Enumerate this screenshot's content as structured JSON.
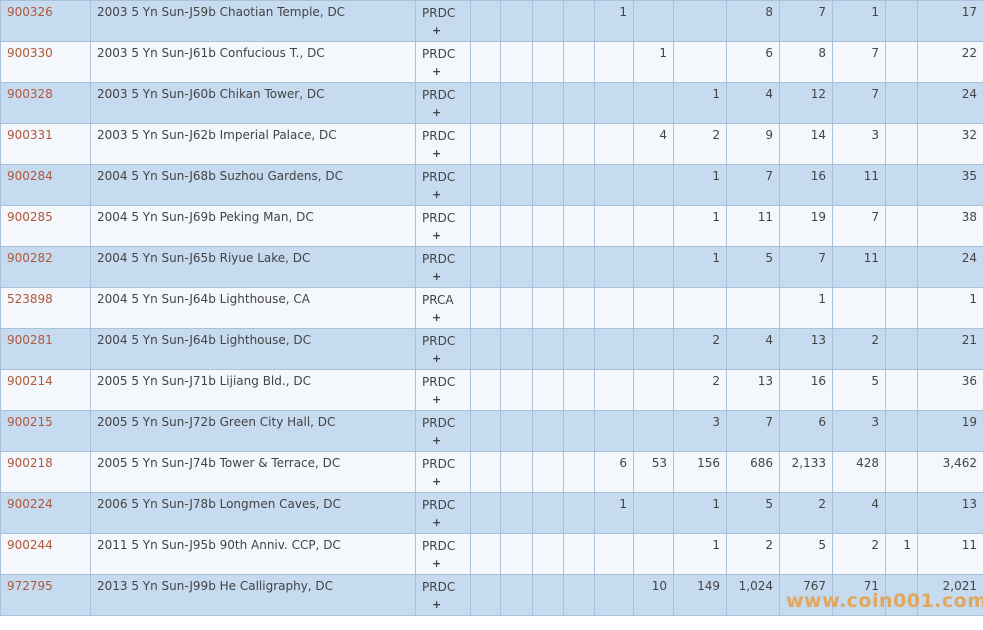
{
  "table": {
    "expand_label": "+",
    "rows": [
      {
        "id": "900326",
        "name": "2003 5 Yn Sun-J59b Chaotian Temple, DC",
        "grade": "PRDC",
        "counts": [
          null,
          null,
          null,
          null,
          "1",
          null,
          null,
          "8",
          "7",
          "1",
          null,
          "17"
        ]
      },
      {
        "id": "900330",
        "name": "2003 5 Yn Sun-J61b Confucious T., DC",
        "grade": "PRDC",
        "counts": [
          null,
          null,
          null,
          null,
          null,
          "1",
          null,
          "6",
          "8",
          "7",
          null,
          "22"
        ]
      },
      {
        "id": "900328",
        "name": "2003 5 Yn Sun-J60b Chikan Tower, DC",
        "grade": "PRDC",
        "counts": [
          null,
          null,
          null,
          null,
          null,
          null,
          "1",
          "4",
          "12",
          "7",
          null,
          "24"
        ]
      },
      {
        "id": "900331",
        "name": "2003 5 Yn Sun-J62b Imperial Palace, DC",
        "grade": "PRDC",
        "counts": [
          null,
          null,
          null,
          null,
          null,
          "4",
          "2",
          "9",
          "14",
          "3",
          null,
          "32"
        ]
      },
      {
        "id": "900284",
        "name": "2004 5 Yn Sun-J68b Suzhou Gardens, DC",
        "grade": "PRDC",
        "counts": [
          null,
          null,
          null,
          null,
          null,
          null,
          "1",
          "7",
          "16",
          "11",
          null,
          "35"
        ]
      },
      {
        "id": "900285",
        "name": "2004 5 Yn Sun-J69b Peking Man, DC",
        "grade": "PRDC",
        "counts": [
          null,
          null,
          null,
          null,
          null,
          null,
          "1",
          "11",
          "19",
          "7",
          null,
          "38"
        ]
      },
      {
        "id": "900282",
        "name": "2004 5 Yn Sun-J65b Riyue Lake, DC",
        "grade": "PRDC",
        "counts": [
          null,
          null,
          null,
          null,
          null,
          null,
          "1",
          "5",
          "7",
          "11",
          null,
          "24"
        ]
      },
      {
        "id": "523898",
        "name": "2004 5 Yn Sun-J64b Lighthouse, CA",
        "grade": "PRCA",
        "counts": [
          null,
          null,
          null,
          null,
          null,
          null,
          null,
          null,
          "1",
          null,
          null,
          "1"
        ]
      },
      {
        "id": "900281",
        "name": "2004 5 Yn Sun-J64b Lighthouse, DC",
        "grade": "PRDC",
        "counts": [
          null,
          null,
          null,
          null,
          null,
          null,
          "2",
          "4",
          "13",
          "2",
          null,
          "21"
        ]
      },
      {
        "id": "900214",
        "name": "2005 5 Yn Sun-J71b Lijiang Bld., DC",
        "grade": "PRDC",
        "counts": [
          null,
          null,
          null,
          null,
          null,
          null,
          "2",
          "13",
          "16",
          "5",
          null,
          "36"
        ]
      },
      {
        "id": "900215",
        "name": "2005 5 Yn Sun-J72b Green City Hall, DC",
        "grade": "PRDC",
        "counts": [
          null,
          null,
          null,
          null,
          null,
          null,
          "3",
          "7",
          "6",
          "3",
          null,
          "19"
        ]
      },
      {
        "id": "900218",
        "name": "2005 5 Yn Sun-J74b Tower & Terrace, DC",
        "grade": "PRDC",
        "counts": [
          null,
          null,
          null,
          null,
          "6",
          "53",
          "156",
          "686",
          "2,133",
          "428",
          null,
          "3,462"
        ]
      },
      {
        "id": "900224",
        "name": "2006 5 Yn Sun-J78b Longmen Caves, DC",
        "grade": "PRDC",
        "counts": [
          null,
          null,
          null,
          null,
          "1",
          null,
          "1",
          "5",
          "2",
          "4",
          null,
          "13"
        ]
      },
      {
        "id": "900244",
        "name": "2011 5 Yn Sun-J95b 90th Anniv. CCP, DC",
        "grade": "PRDC",
        "counts": [
          null,
          null,
          null,
          null,
          null,
          null,
          "1",
          "2",
          "5",
          "2",
          "1",
          "11"
        ]
      },
      {
        "id": "972795",
        "name": "2013 5 Yn Sun-J99b He Calligraphy, DC",
        "grade": "PRDC",
        "counts": [
          null,
          null,
          null,
          null,
          null,
          "10",
          "149",
          "1,024",
          "767",
          "71",
          null,
          "2,021"
        ]
      }
    ],
    "watermark": "www.coin001.com"
  }
}
